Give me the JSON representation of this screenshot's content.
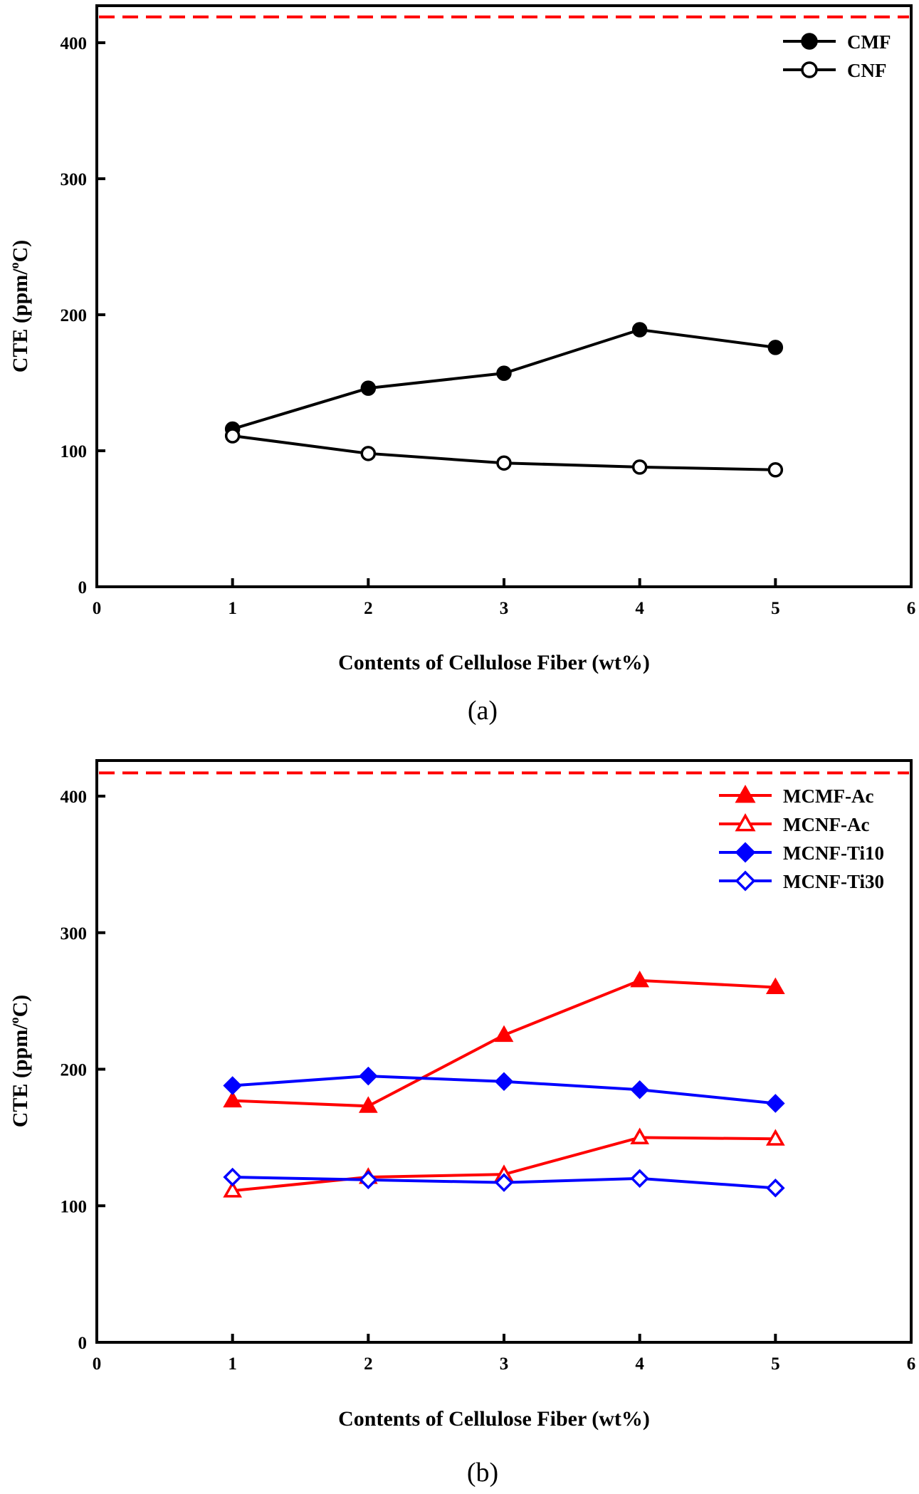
{
  "chart_data": [
    {
      "panel": "a",
      "caption": "(a)",
      "type": "line",
      "title": "",
      "xlabel": "Contents of  Cellulose Fiber (wt%)",
      "ylabel_main": "CTE (ppm/",
      "ylabel_sup": "o",
      "ylabel_end": "C)",
      "xlim": [
        0,
        6
      ],
      "ylim": [
        0,
        430
      ],
      "xticks": [
        0,
        1,
        2,
        3,
        4,
        5,
        6
      ],
      "yticks": [
        0,
        100,
        200,
        300,
        400
      ],
      "grid": false,
      "legend_position": "top-right",
      "reference_line": {
        "y": 419,
        "color": "#ff0000",
        "style": "dashed"
      },
      "x": [
        1,
        2,
        3,
        4,
        5
      ],
      "series": [
        {
          "name": "CMF",
          "marker": "circle",
          "filled": true,
          "color": "#000000",
          "values": [
            116,
            146,
            157,
            189,
            176
          ]
        },
        {
          "name": "CNF",
          "marker": "circle",
          "filled": false,
          "color": "#000000",
          "values": [
            111,
            98,
            91,
            88,
            86
          ]
        }
      ]
    },
    {
      "panel": "b",
      "caption": "(b)",
      "type": "line",
      "title": "",
      "xlabel": "Contents of  Cellulose Fiber (wt%)",
      "ylabel_main": "CTE (ppm/",
      "ylabel_sup": "o",
      "ylabel_end": "C)",
      "xlim": [
        0,
        6
      ],
      "ylim": [
        0,
        430
      ],
      "xticks": [
        0,
        1,
        2,
        3,
        4,
        5,
        6
      ],
      "yticks": [
        0,
        100,
        200,
        300,
        400
      ],
      "grid": false,
      "legend_position": "top-right",
      "reference_line": {
        "y": 417,
        "color": "#ff0000",
        "style": "dashed"
      },
      "x": [
        1,
        2,
        3,
        4,
        5
      ],
      "series": [
        {
          "name": "MCMF-Ac",
          "marker": "triangle",
          "filled": true,
          "color": "#ff0000",
          "values": [
            177,
            173,
            225,
            265,
            260
          ]
        },
        {
          "name": "MCNF-Ac",
          "marker": "triangle",
          "filled": false,
          "color": "#ff0000",
          "values": [
            111,
            121,
            123,
            150,
            149
          ]
        },
        {
          "name": "MCNF-Ti10",
          "marker": "diamond",
          "filled": true,
          "color": "#0000ff",
          "values": [
            188,
            195,
            191,
            185,
            175
          ]
        },
        {
          "name": "MCNF-Ti30",
          "marker": "diamond",
          "filled": false,
          "color": "#0000ff",
          "values": [
            121,
            119,
            117,
            120,
            113
          ]
        }
      ]
    }
  ]
}
